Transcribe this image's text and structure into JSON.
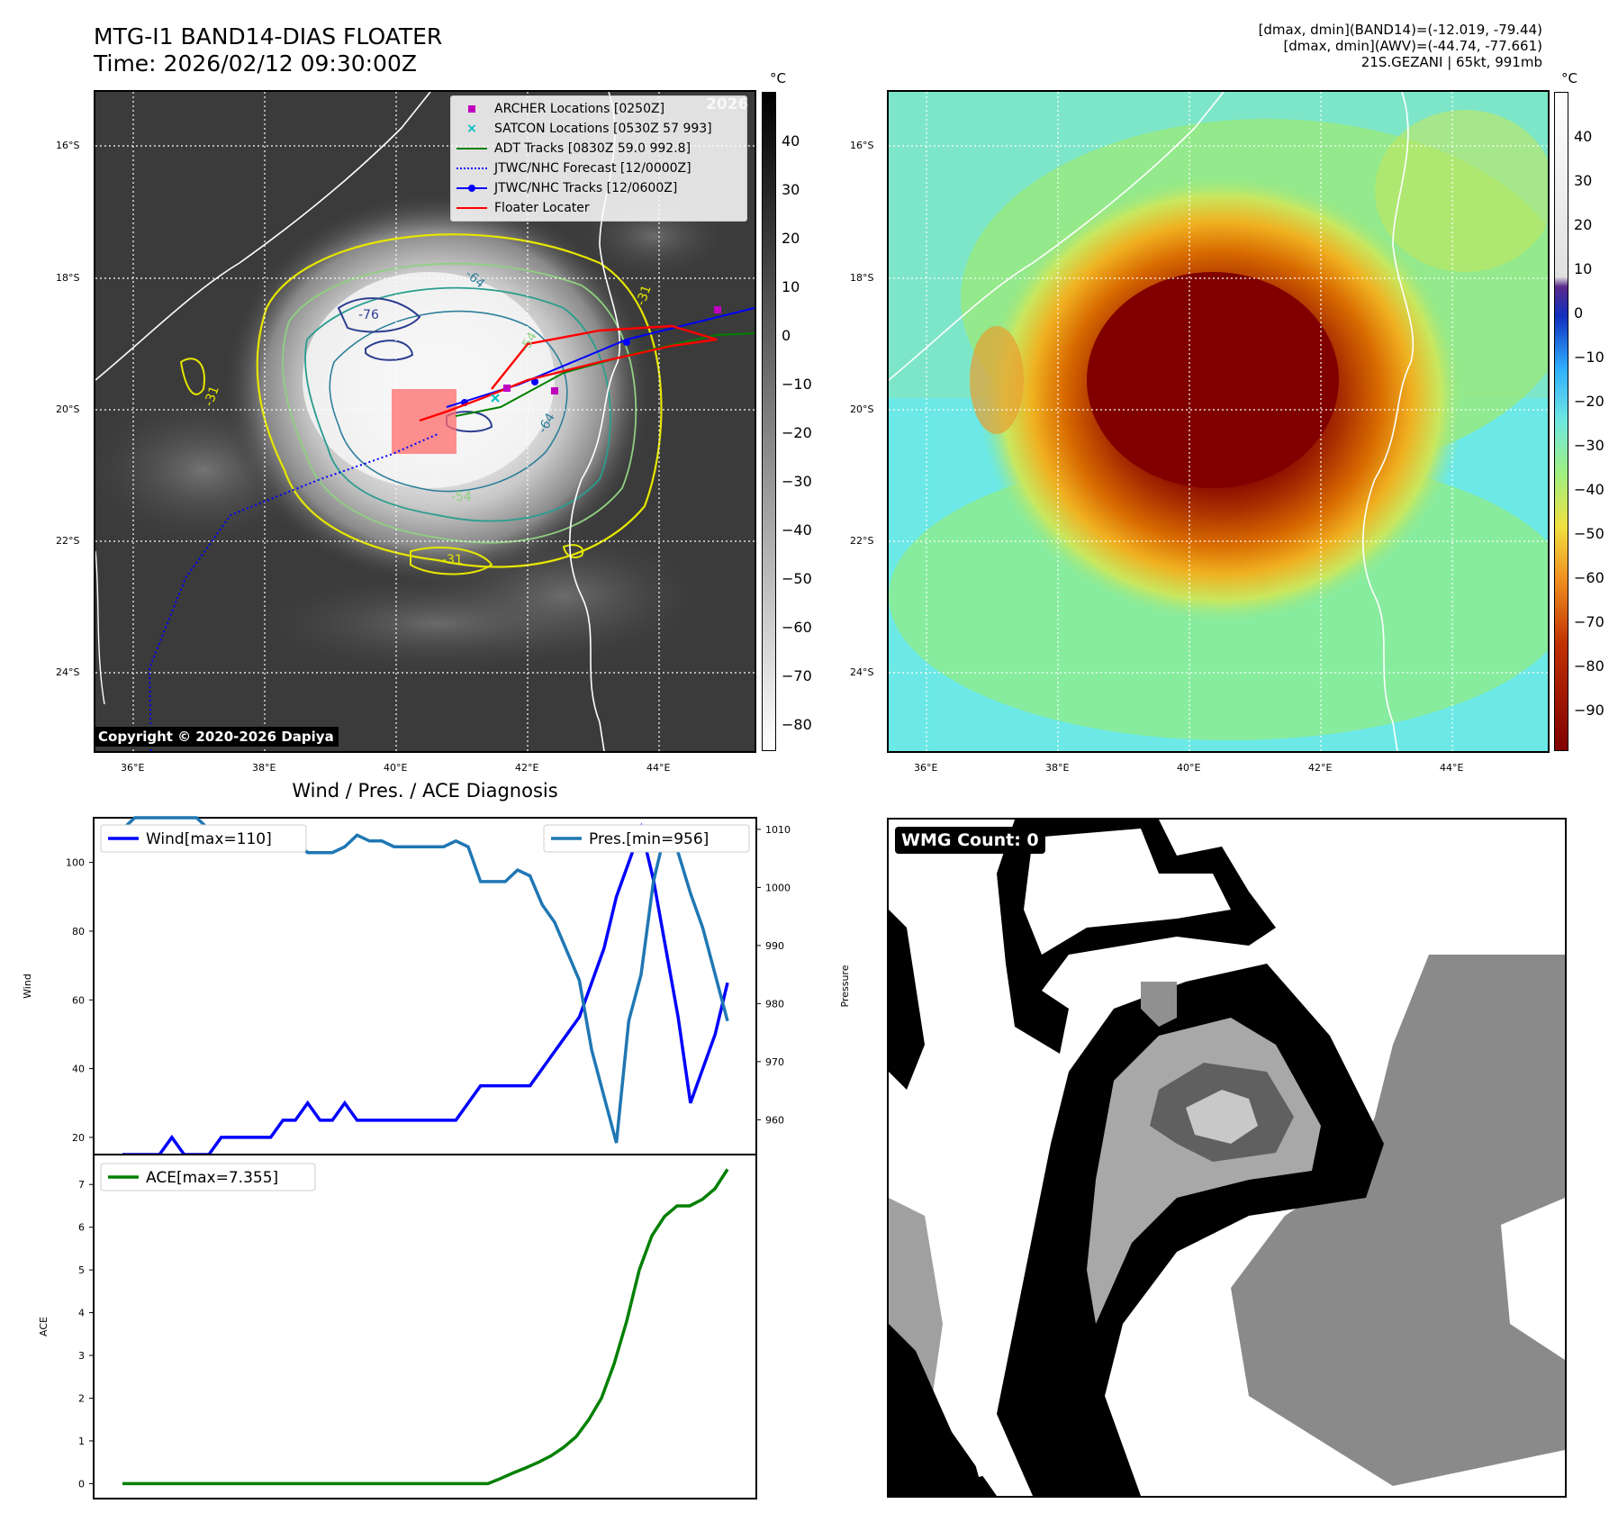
{
  "header": {
    "title_line1": "MTG-I1 BAND14-DIAS FLOATER",
    "title_line2": "Time: 2026/02/12 09:30:00Z",
    "right_line1": "[dmax, dmin](BAND14)=(-12.019, -79.44)",
    "right_line2": "[dmax, dmin](AWV)=(-44.74, -77.661)",
    "right_line3": "21S.GEZANI | 65kt, 991mb"
  },
  "map_axes": {
    "lat_labels": [
      "16°S",
      "18°S",
      "20°S",
      "22°S",
      "24°S"
    ],
    "lon_labels": [
      "36°E",
      "38°E",
      "40°E",
      "42°E",
      "44°E"
    ]
  },
  "ir_colorbar": {
    "unit": "°C",
    "ticks": [
      "40",
      "30",
      "20",
      "10",
      "0",
      "−10",
      "−20",
      "−30",
      "−40",
      "−50",
      "−60",
      "−70",
      "−80"
    ]
  },
  "awv_colorbar": {
    "unit": "°C",
    "ticks": [
      "40",
      "30",
      "20",
      "10",
      "0",
      "−10",
      "−20",
      "−30",
      "−40",
      "−50",
      "−60",
      "−70",
      "−80",
      "−90"
    ]
  },
  "map_legend": [
    {
      "label": "ARCHER Locations [0250Z]",
      "color": "#bf00bf",
      "icon": "square-marker"
    },
    {
      "label": "SATCON Locations [0530Z 57 993]",
      "color": "#00bfbf",
      "icon": "x-marker"
    },
    {
      "label": "ADT Tracks [0830Z 59.0 992.8]",
      "color": "#008000",
      "icon": "solid-line"
    },
    {
      "label": "JTWC/NHC Forecast [12/0000Z]",
      "color": "#0000ff",
      "icon": "dotted-line"
    },
    {
      "label": "JTWC/NHC Tracks [12/0600Z]",
      "color": "#0000ff",
      "icon": "line-with-dot"
    },
    {
      "label": "Floater Locater",
      "color": "#ff0000",
      "icon": "solid-line"
    }
  ],
  "watermark": "Copyright © 2020-2026 Dapiya",
  "faint_watermark": "2026",
  "contour_labels": [
    "-31",
    "-54",
    "-64",
    "-76",
    "-31",
    "-54",
    "-64",
    "-31"
  ],
  "diag_title": "Wind / Pres. / ACE Diagnosis",
  "wmg_label": "WMG Count: 0",
  "chart_data": [
    {
      "type": "line",
      "title": "Wind / Pres. / ACE Diagnosis",
      "ylabel": "Wind",
      "y2label": "Pressure",
      "ylim": [
        15,
        113
      ],
      "y2lim": [
        954,
        1012
      ],
      "yticks": [
        20,
        40,
        60,
        80,
        100
      ],
      "y2ticks": [
        960,
        970,
        980,
        990,
        1000,
        1010
      ],
      "series": [
        {
          "name": "Wind[max=110]",
          "color": "#0000ff",
          "axis": "left",
          "values": [
            15,
            15,
            15,
            15,
            20,
            15,
            15,
            15,
            20,
            20,
            20,
            20,
            20,
            25,
            25,
            30,
            25,
            25,
            30,
            25,
            25,
            25,
            25,
            25,
            25,
            25,
            25,
            25,
            30,
            35,
            35,
            35,
            35,
            35,
            40,
            45,
            50,
            55,
            65,
            75,
            90,
            100,
            110,
            95,
            75,
            55,
            30,
            40,
            50,
            65
          ]
        },
        {
          "name": "Pres.[min=956]",
          "color": "#1f77b4",
          "axis": "right",
          "values": [
            1010,
            1012,
            1012,
            1012,
            1012,
            1012,
            1012,
            1010,
            1008,
            1008,
            1008,
            1007,
            1007,
            1007,
            1008,
            1006,
            1006,
            1006,
            1007,
            1009,
            1008,
            1008,
            1007,
            1007,
            1007,
            1007,
            1007,
            1008,
            1007,
            1001,
            1001,
            1001,
            1003,
            1002,
            997,
            994,
            989,
            984,
            972,
            964,
            956,
            977,
            985,
            1001,
            1010,
            1006,
            999,
            993,
            985,
            977
          ]
        }
      ]
    },
    {
      "type": "line",
      "ylabel": "ACE",
      "ylim": [
        -0.35,
        7.7
      ],
      "yticks": [
        0,
        1,
        2,
        3,
        4,
        5,
        6,
        7
      ],
      "series": [
        {
          "name": "ACE[max=7.355]",
          "color": "#008000",
          "values": [
            0,
            0,
            0,
            0,
            0,
            0,
            0,
            0,
            0,
            0,
            0,
            0,
            0,
            0,
            0,
            0,
            0,
            0,
            0,
            0,
            0,
            0,
            0,
            0,
            0,
            0,
            0,
            0,
            0,
            0,
            0.12,
            0.25,
            0.37,
            0.5,
            0.65,
            0.85,
            1.1,
            1.5,
            2.0,
            2.8,
            3.8,
            5.0,
            5.8,
            6.25,
            6.5,
            6.5,
            6.65,
            6.9,
            7.355
          ]
        }
      ]
    }
  ]
}
